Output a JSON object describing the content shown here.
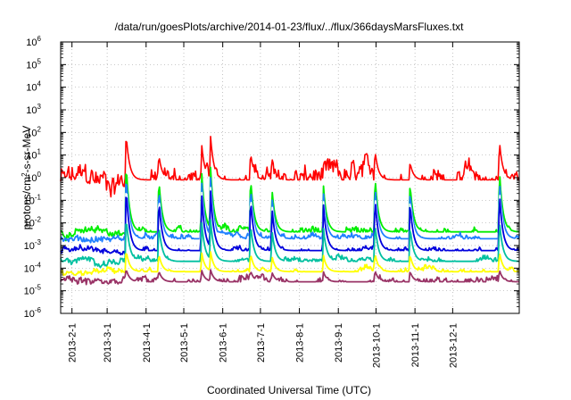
{
  "chart_data": {
    "type": "line",
    "title": "/data/run/goesPlots/archive/2014-01-23/flux/../flux/366daysMarsFluxes.txt",
    "xlabel": "Coordinated Universal Time (UTC)",
    "ylabel": "protons/cm²-s-sr-MeV",
    "ylabel_parts": {
      "base": "protons/cm",
      "sup": "2",
      "rest": "-s-sr-MeV"
    },
    "yscale": "log",
    "ylim": [
      1e-06,
      1000000.0
    ],
    "xlim": [
      "2013-01-23",
      "2014-01-23"
    ],
    "x_ticks": [
      "2013-2-1",
      "2013-3-1",
      "2013-4-1",
      "2013-5-1",
      "2013-6-1",
      "2013-7-1",
      "2013-8-1",
      "2013-9-1",
      "2013-10-1",
      "2013-11-1",
      "2013-12-1"
    ],
    "y_ticks": [
      {
        "base": "10",
        "exp": "-6"
      },
      {
        "base": "10",
        "exp": "-5"
      },
      {
        "base": "10",
        "exp": "-4"
      },
      {
        "base": "10",
        "exp": "-3"
      },
      {
        "base": "10",
        "exp": "-2"
      },
      {
        "base": "10",
        "exp": "-1"
      },
      {
        "base": "10",
        "exp": "0"
      },
      {
        "base": "10",
        "exp": "1"
      },
      {
        "base": "10",
        "exp": "2"
      },
      {
        "base": "10",
        "exp": "3"
      },
      {
        "base": "10",
        "exp": "4"
      },
      {
        "base": "10",
        "exp": "5"
      },
      {
        "base": "10",
        "exp": "6"
      }
    ],
    "grid": true,
    "legend": "none",
    "events": [
      {
        "date": "2013-03-16",
        "peak": 110
      },
      {
        "date": "2013-04-11",
        "peak": 12
      },
      {
        "date": "2013-05-15",
        "peak": 40
      },
      {
        "date": "2013-05-22",
        "peak": 120
      },
      {
        "date": "2013-06-23",
        "peak": 15
      },
      {
        "date": "2013-07-10",
        "peak": 3
      },
      {
        "date": "2013-08-20",
        "peak": 4
      },
      {
        "date": "2013-09-30",
        "peak": 20
      },
      {
        "date": "2013-10-28",
        "peak": 5
      },
      {
        "date": "2014-01-07",
        "peak": 60
      }
    ],
    "series": [
      {
        "color": "#ff0000",
        "baseline": 0.8,
        "noise": 0.35,
        "response": 1.0
      },
      {
        "color": "#00ee00",
        "baseline": 0.004,
        "noise": 0.12,
        "response": 0.85
      },
      {
        "color": "#2080ff",
        "baseline": 0.002,
        "noise": 0.1,
        "response": 0.8
      },
      {
        "color": "#ffffff",
        "baseline": 0.0012,
        "noise": 0.08,
        "response": 0.75
      },
      {
        "color": "#0000dd",
        "baseline": 0.0006,
        "noise": 0.1,
        "response": 0.75
      },
      {
        "color": "#00c0a0",
        "baseline": 0.0002,
        "noise": 0.1,
        "response": 0.6
      },
      {
        "color": "#ffff00",
        "baseline": 7e-05,
        "noise": 0.1,
        "response": 0.4
      },
      {
        "color": "#993366",
        "baseline": 2.5e-05,
        "noise": 0.12,
        "response": 0.3
      }
    ]
  }
}
